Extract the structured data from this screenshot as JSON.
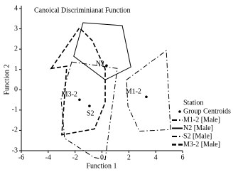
{
  "chart_data": {
    "type": "scatter",
    "title": "Canoical Discriminianat Function",
    "xlabel": "Function 1",
    "ylabel": "Function 2",
    "xlim": [
      -6,
      6
    ],
    "xticks": [
      -6,
      -4,
      -2,
      0,
      2,
      4,
      6
    ],
    "ylim": [
      -3,
      4
    ],
    "yticks": [
      -3,
      -2,
      -1,
      0,
      1,
      2,
      3,
      4
    ],
    "legend_title": "Station",
    "centroids": {
      "name": "Group Centroids",
      "color": "#000000",
      "labels": [
        "N2",
        "M3-2",
        "S2",
        "M1-2"
      ],
      "x": [
        0.34,
        -1.67,
        -0.93,
        3.3
      ],
      "y": [
        1.19,
        -0.49,
        -0.8,
        -0.35
      ]
    },
    "series": [
      {
        "name": "M1-2 [Male]",
        "color": "#000000",
        "style": "dashdot",
        "width": 1,
        "x": [
          1.83,
          4.79,
          5.1,
          2.78,
          1.93
        ],
        "y": [
          0.49,
          1.93,
          -1.96,
          -2.04,
          -0.81
        ]
      },
      {
        "name": "N2 [Male]",
        "color": "#000000",
        "style": "solid",
        "width": 1,
        "x": [
          -1.41,
          1.51,
          2.15,
          0.24,
          -2.1
        ],
        "y": [
          3.3,
          3.16,
          1.12,
          0.49,
          1.65
        ]
      },
      {
        "name": "S2 [Male]",
        "color": "#000000",
        "style": "dashdot",
        "width": 1,
        "x": [
          -2.25,
          1.14,
          0.24,
          -0.6,
          -2.78,
          -3.04
        ],
        "y": [
          1.37,
          1.05,
          -3.44,
          -3.33,
          -2.39,
          -0.46
        ]
      },
      {
        "name": "M3-2 [Male]",
        "color": "#000000",
        "style": "dashed",
        "width": 1.6,
        "x": [
          -3.78,
          -1.67,
          -0.72,
          0.24,
          0.24,
          -0.56,
          -2.99,
          -2.62
        ],
        "y": [
          1.05,
          3.05,
          2.42,
          1.02,
          -0.63,
          -1.93,
          -2.22,
          1.16
        ]
      }
    ]
  }
}
